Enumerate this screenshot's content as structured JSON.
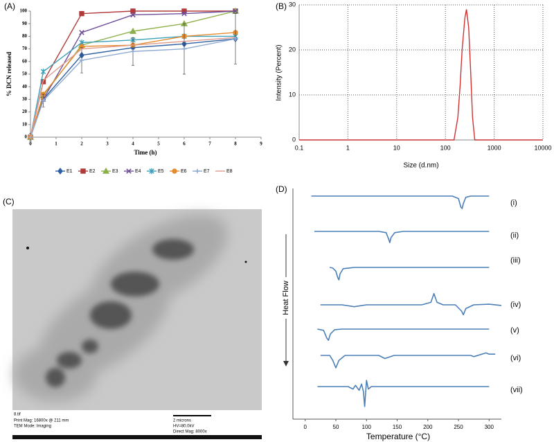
{
  "chart_data": [
    {
      "type": "line",
      "title": "(A)",
      "y_label": "% DCN released",
      "x_label": "Time (h)",
      "x": [
        0,
        0.5,
        2,
        4,
        6,
        8
      ],
      "xlim": [
        0,
        9
      ],
      "xticks": [
        0,
        1,
        2,
        3,
        4,
        5,
        6,
        7,
        8,
        9
      ],
      "ylim": [
        0,
        100
      ],
      "yticks": [
        0,
        10,
        20,
        30,
        40,
        50,
        60,
        70,
        80,
        90,
        100
      ],
      "series": [
        {
          "name": "E1",
          "color": "#2e5fa4",
          "marker": "diamond",
          "values": [
            0,
            30,
            65,
            71,
            74,
            78
          ]
        },
        {
          "name": "E2",
          "color": "#b03a3a",
          "marker": "square",
          "values": [
            0,
            44,
            98,
            100,
            100,
            100
          ]
        },
        {
          "name": "E3",
          "color": "#8db04b",
          "marker": "triangle",
          "values": [
            0,
            33,
            73,
            84,
            90,
            100
          ]
        },
        {
          "name": "E4",
          "color": "#6f4e9a",
          "marker": "cross",
          "values": [
            0,
            30,
            83,
            97,
            98,
            100
          ]
        },
        {
          "name": "E5",
          "color": "#3aa0b8",
          "marker": "star",
          "values": [
            0,
            52,
            75,
            77,
            80,
            80
          ]
        },
        {
          "name": "E6",
          "color": "#e58a2d",
          "marker": "circle",
          "values": [
            0,
            34,
            72,
            73,
            80,
            83
          ]
        },
        {
          "name": "E7",
          "color": "#8fa9d0",
          "marker": "plus",
          "values": [
            0,
            29,
            61,
            68,
            70,
            78
          ],
          "errors": [
            3,
            5,
            10,
            11,
            20,
            20
          ]
        },
        {
          "name": "E8",
          "color": "#e19b8c",
          "marker": "none",
          "values": [
            0,
            45,
            70,
            73,
            76,
            79
          ]
        }
      ]
    },
    {
      "type": "line",
      "title": "(B)",
      "y_label": "Intensity (Percent)",
      "x_label": "Size (d.nm)",
      "xscale": "log",
      "grid": true,
      "color": "#d03030",
      "x": [
        0.1,
        1,
        10,
        100,
        150,
        180,
        200,
        220,
        250,
        270,
        300,
        330,
        360,
        400,
        1000,
        10000
      ],
      "values": [
        0,
        0,
        0,
        0,
        0,
        5,
        12,
        20,
        27,
        29,
        25,
        15,
        5,
        0,
        0,
        0
      ],
      "xlim": [
        0.1,
        10000
      ],
      "xticks": [
        0.1,
        1,
        10,
        100,
        1000,
        10000
      ],
      "ylim": [
        0,
        30
      ],
      "yticks": [
        0,
        10,
        20,
        30
      ]
    },
    {
      "type": "dsc",
      "title": "(D)",
      "y_label": "Heat Flow",
      "x_label": "Temperature (°C)",
      "color": "#4a7fb8",
      "xlim": [
        -20,
        320
      ],
      "xticks": [
        0,
        50,
        100,
        150,
        200,
        250,
        300
      ],
      "series": [
        {
          "name": "(i)",
          "x": [
            10,
            240,
            250,
            254,
            256,
            258,
            262,
            270,
            300
          ],
          "values": [
            0,
            0,
            -0.2,
            -0.9,
            -1,
            -0.6,
            -0.1,
            0,
            0
          ]
        },
        {
          "name": "(ii)",
          "x": [
            15,
            120,
            132,
            136,
            138,
            140,
            146,
            160,
            300
          ],
          "values": [
            0,
            0,
            -0.1,
            -0.6,
            -0.9,
            -0.5,
            -0.1,
            0,
            0
          ]
        },
        {
          "name": "(iii)",
          "x": [
            40,
            45,
            50,
            53,
            55,
            57,
            62,
            80,
            300
          ],
          "values": [
            0,
            -0.05,
            -0.3,
            -0.8,
            -1,
            -0.5,
            -0.1,
            0,
            0
          ]
        },
        {
          "name": "(iv)",
          "x": [
            25,
            60,
            80,
            100,
            190,
            205,
            210,
            215,
            225,
            245,
            255,
            258,
            262,
            275,
            300,
            320
          ],
          "values": [
            0,
            0,
            -0.15,
            0,
            0,
            0.2,
            0.9,
            0.2,
            0,
            0,
            -0.5,
            -0.8,
            -0.3,
            0,
            0.05,
            -0.05
          ]
        },
        {
          "name": "(v)",
          "x": [
            20,
            30,
            35,
            38,
            41,
            48,
            60,
            300
          ],
          "values": [
            0,
            -0.1,
            -0.7,
            -0.9,
            -0.4,
            -0.05,
            0,
            0
          ]
        },
        {
          "name": "(vi)",
          "x": [
            25,
            40,
            45,
            50,
            55,
            65,
            120,
            130,
            145,
            270,
            275,
            295,
            300,
            310
          ],
          "values": [
            0,
            0,
            -0.4,
            -1,
            -0.4,
            0,
            0,
            -0.25,
            0,
            0,
            -0.1,
            0.2,
            0.1,
            0.1
          ]
        },
        {
          "name": "(vii)",
          "x": [
            20,
            70,
            78,
            82,
            88,
            92,
            95,
            97,
            100,
            103,
            108,
            300
          ],
          "values": [
            0,
            0,
            -0.2,
            0.1,
            -0.3,
            0.2,
            -0.4,
            -1.6,
            0.5,
            -0.2,
            0,
            0
          ]
        }
      ]
    }
  ],
  "image": {
    "title": "(C)",
    "file": "8.tif",
    "print_mag": "Print Mag: 16800x @ 211 mm",
    "mode": "TEM Mode: Imaging",
    "scale": "2 microns",
    "hv": "HV=80.0kV",
    "direct_mag": "Direct Mag: 8000x"
  }
}
